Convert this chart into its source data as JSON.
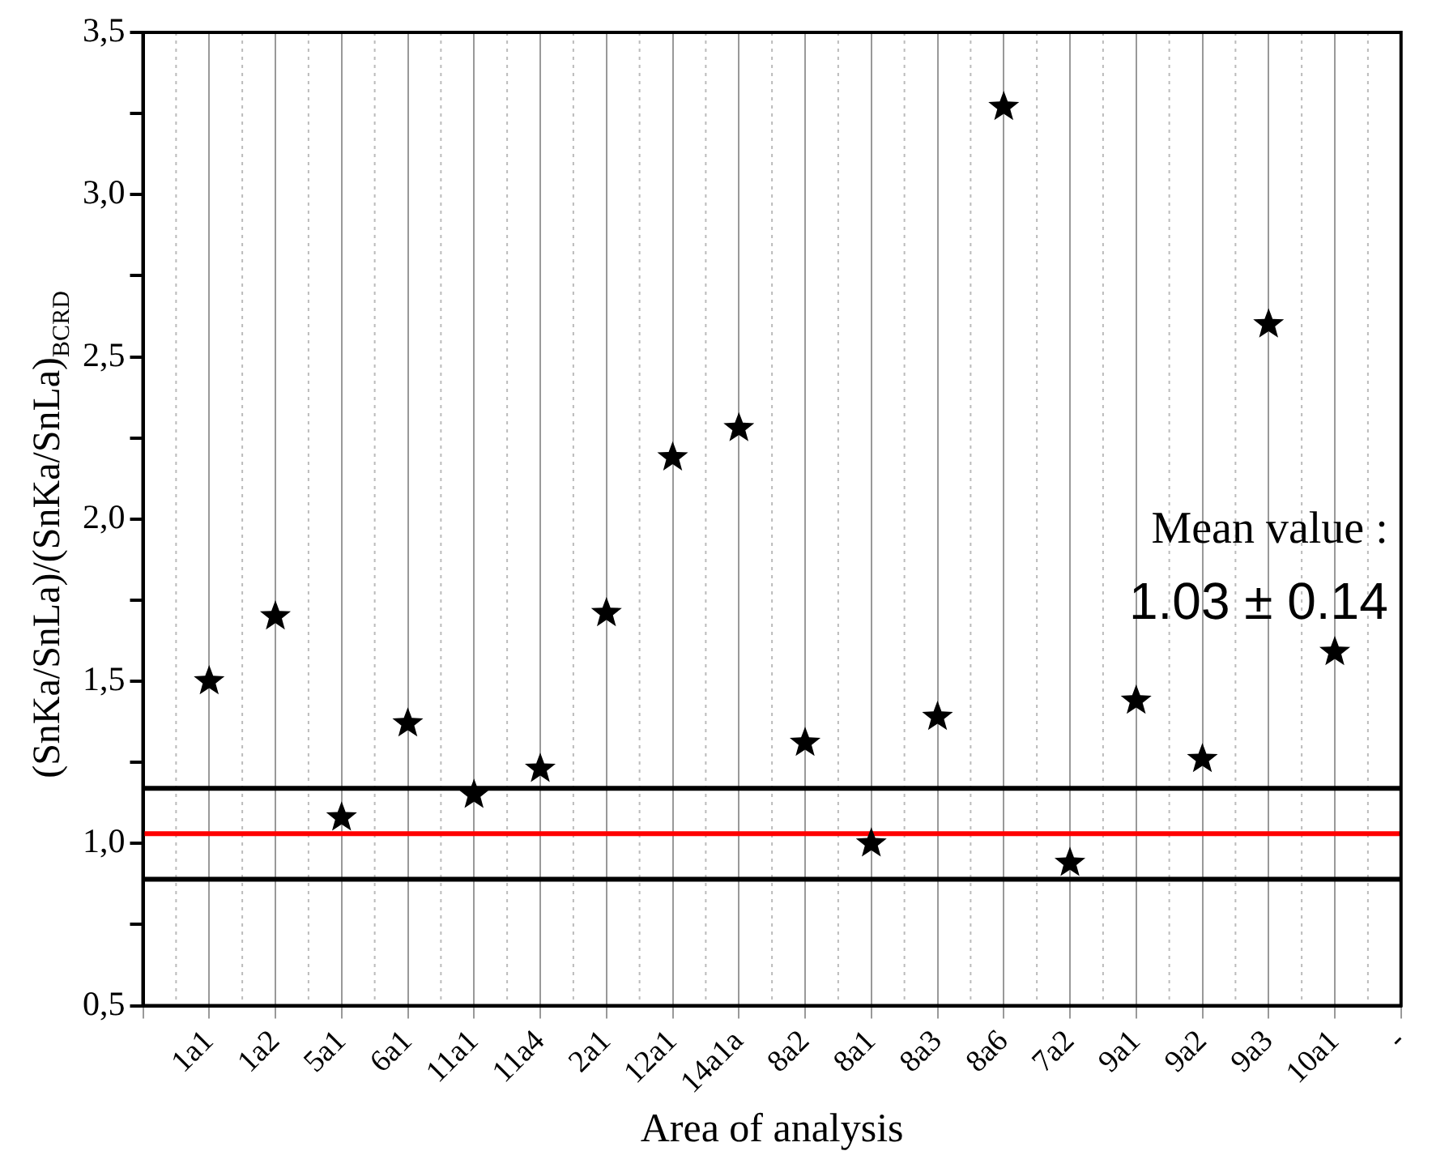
{
  "chart_data": {
    "type": "scatter",
    "xlabel": "Area of analysis",
    "ylabel": "(SnKa/SnLa)/(SnKa/SnLa)$_{BCRD}$",
    "categories": [
      null,
      "1a1",
      "1a2",
      "5a1",
      "6a1",
      "11a1",
      "11a4",
      "2a1",
      "12a1",
      "14a1a",
      "8a2",
      "8a1",
      "8a3",
      "8a6",
      "7a2",
      "9a1",
      "9a2",
      "9a3",
      "10a1",
      "-"
    ],
    "series": [
      {
        "color": "#000000",
        "values": [
          null,
          1.5,
          1.7,
          1.08,
          1.37,
          1.15,
          1.23,
          1.71,
          2.19,
          2.28,
          1.31,
          1.0,
          1.39,
          3.27,
          0.94,
          1.44,
          1.26,
          2.6,
          1.59,
          null
        ]
      }
    ],
    "ylim": [
      0.5,
      3.5
    ],
    "yticks": [
      {
        "value": 0.5,
        "label": "0,5"
      },
      {
        "value": 0.75,
        "label": null
      },
      {
        "value": 1.0,
        "label": "1,0"
      },
      {
        "value": 1.25,
        "label": null
      },
      {
        "value": 1.5,
        "label": "1,5"
      },
      {
        "value": 1.75,
        "label": null
      },
      {
        "value": 2.0,
        "label": "2,0"
      },
      {
        "value": 2.25,
        "label": null
      },
      {
        "value": 2.5,
        "label": "2,5"
      },
      {
        "value": 2.75,
        "label": null
      },
      {
        "value": 3.0,
        "label": "3,0"
      },
      {
        "value": 3.25,
        "label": null
      },
      {
        "value": 3.5,
        "label": "3,5"
      }
    ],
    "ref_lines": [
      {
        "axis": "y",
        "value": 1.17,
        "color": "#000000"
      },
      {
        "axis": "y",
        "value": 1.03,
        "color": "#ff0000"
      },
      {
        "axis": "y",
        "value": 0.89,
        "color": "#000000"
      }
    ],
    "annotations": [
      "Mean value :",
      "1.03 ± 0.14"
    ],
    "grid": "x",
    "legend": false,
    "marker": "star"
  }
}
